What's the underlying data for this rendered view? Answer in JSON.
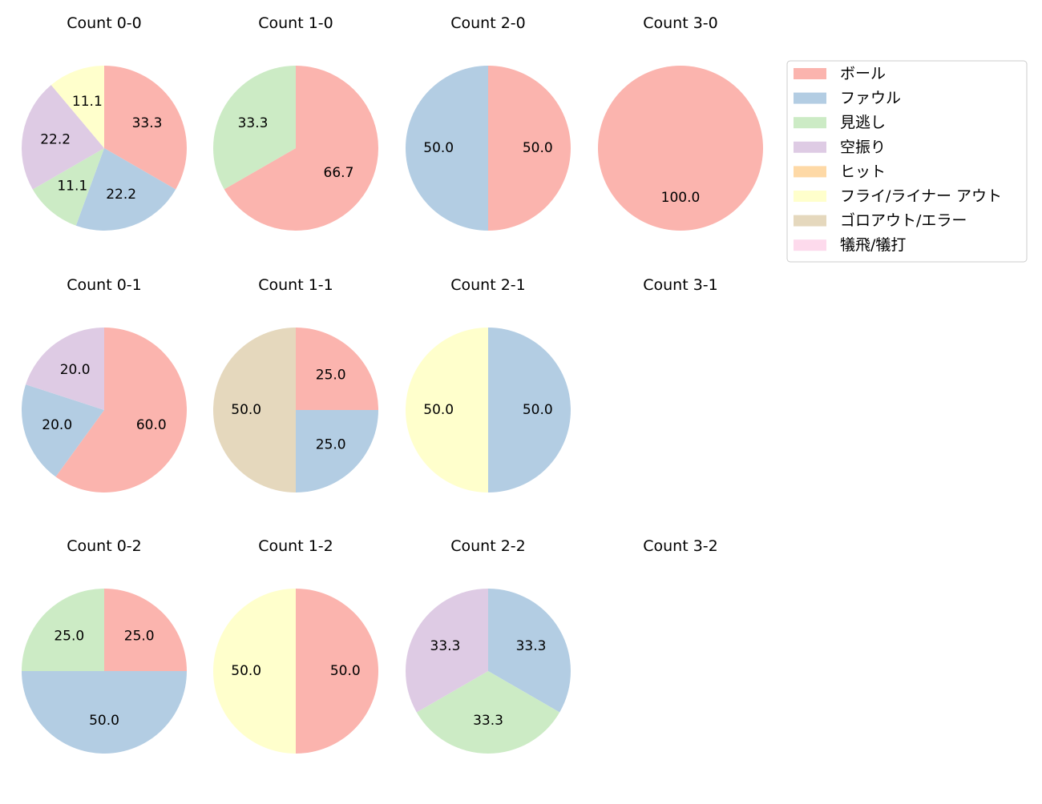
{
  "chart_data": {
    "type": "pie",
    "start_angle": 90,
    "direction": "clockwise",
    "legend": {
      "placement": "top-right",
      "entries": [
        {
          "name": "ボール",
          "color": "#fbb4ae"
        },
        {
          "name": "ファウル",
          "color": "#b3cde3"
        },
        {
          "name": "見逃し",
          "color": "#ccebc5"
        },
        {
          "name": "空振り",
          "color": "#decbe4"
        },
        {
          "name": "ヒット",
          "color": "#fed9a6"
        },
        {
          "name": "フライ/ライナー アウト",
          "color": "#ffffcc"
        },
        {
          "name": "ゴロアウト/エラー",
          "color": "#e5d8bd"
        },
        {
          "name": "犠飛/犠打",
          "color": "#fddaec"
        }
      ]
    },
    "charts": [
      {
        "title": "Count 0-0",
        "slices": [
          {
            "category": "ボール",
            "value": 33.3
          },
          {
            "category": "ファウル",
            "value": 22.2
          },
          {
            "category": "見逃し",
            "value": 11.1
          },
          {
            "category": "空振り",
            "value": 22.2
          },
          {
            "category": "フライ/ライナー アウト",
            "value": 11.1
          }
        ]
      },
      {
        "title": "Count 1-0",
        "slices": [
          {
            "category": "ボール",
            "value": 66.7
          },
          {
            "category": "見逃し",
            "value": 33.3
          }
        ]
      },
      {
        "title": "Count 2-0",
        "slices": [
          {
            "category": "ボール",
            "value": 50.0
          },
          {
            "category": "ファウル",
            "value": 50.0
          }
        ]
      },
      {
        "title": "Count 3-0",
        "slices": [
          {
            "category": "ボール",
            "value": 100.0
          }
        ]
      },
      {
        "title": "Count 0-1",
        "slices": [
          {
            "category": "ボール",
            "value": 60.0
          },
          {
            "category": "ファウル",
            "value": 20.0
          },
          {
            "category": "空振り",
            "value": 20.0
          }
        ]
      },
      {
        "title": "Count 1-1",
        "slices": [
          {
            "category": "ボール",
            "value": 25.0
          },
          {
            "category": "ファウル",
            "value": 25.0
          },
          {
            "category": "ゴロアウト/エラー",
            "value": 50.0
          }
        ]
      },
      {
        "title": "Count 2-1",
        "slices": [
          {
            "category": "ファウル",
            "value": 50.0
          },
          {
            "category": "フライ/ライナー アウト",
            "value": 50.0
          }
        ]
      },
      {
        "title": "Count 3-1",
        "slices": []
      },
      {
        "title": "Count 0-2",
        "slices": [
          {
            "category": "ボール",
            "value": 25.0
          },
          {
            "category": "ファウル",
            "value": 50.0
          },
          {
            "category": "見逃し",
            "value": 25.0
          }
        ]
      },
      {
        "title": "Count 1-2",
        "slices": [
          {
            "category": "ボール",
            "value": 50.0
          },
          {
            "category": "フライ/ライナー アウト",
            "value": 50.0
          }
        ]
      },
      {
        "title": "Count 2-2",
        "slices": [
          {
            "category": "ファウル",
            "value": 33.3
          },
          {
            "category": "見逃し",
            "value": 33.3
          },
          {
            "category": "空振り",
            "value": 33.3
          }
        ]
      },
      {
        "title": "Count 3-2",
        "slices": []
      }
    ]
  }
}
